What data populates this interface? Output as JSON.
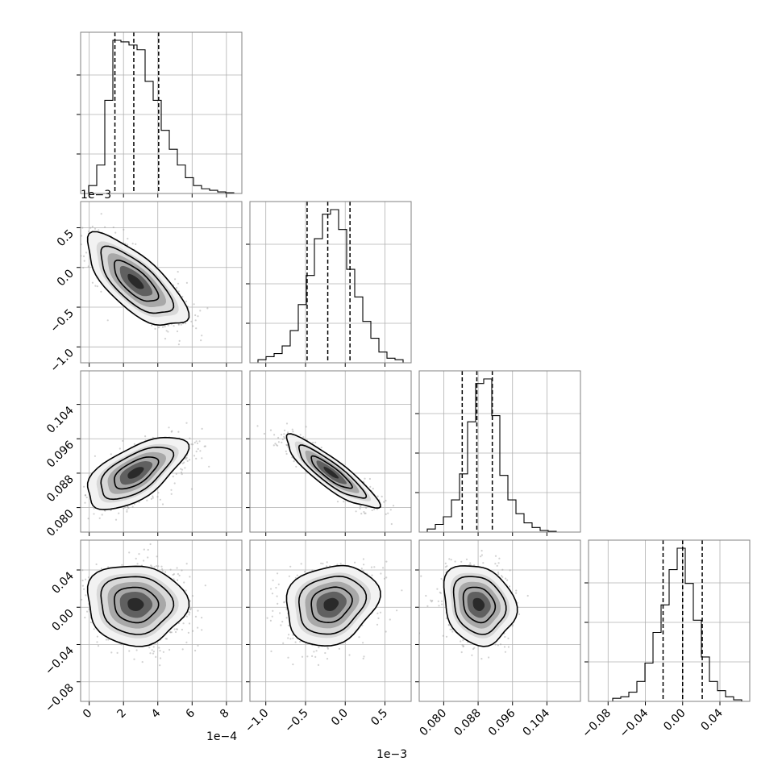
{
  "chart_data": {
    "type": "corner",
    "n_params": 4,
    "tick_labels": {
      "p0": [
        "0",
        "2",
        "4",
        "6",
        "8"
      ],
      "p1": [
        "−1.0",
        "−0.5",
        "0.0",
        "0.5"
      ],
      "p2": [
        "0.080",
        "0.088",
        "0.096",
        "0.104"
      ],
      "p3": [
        "−0.08",
        "−0.04",
        "0.00",
        "0.04"
      ]
    },
    "ticks": {
      "p0": [
        0,
        2,
        4,
        6,
        8
      ],
      "p1": [
        -1.0,
        -0.5,
        0.0,
        0.5
      ],
      "p2": [
        0.08,
        0.088,
        0.096,
        0.104
      ],
      "p3": [
        -0.08,
        -0.04,
        0.0,
        0.04
      ]
    },
    "offset_labels": {
      "p0_x": "1e−4",
      "p1_x": "1e−3",
      "p1_y": "1e−3"
    },
    "ranges": {
      "p0": [
        -0.5,
        8.9
      ],
      "p1": [
        -1.2,
        0.83
      ],
      "p2": [
        0.0743,
        0.1118
      ],
      "p3": [
        -0.101,
        0.072
      ]
    },
    "quantiles": {
      "p0": [
        1.5,
        2.6,
        4.05
      ],
      "p1": [
        -0.48,
        -0.22,
        0.06
      ],
      "p2": [
        0.0843,
        0.0877,
        0.0913
      ],
      "p3": [
        -0.021,
        0.0,
        0.021
      ]
    },
    "marginals": {
      "p0": {
        "edges_start": -0.5,
        "bin_width": 0.47,
        "counts": [
          0,
          0.05,
          0.18,
          0.59,
          0.97,
          0.96,
          0.94,
          0.91,
          0.71,
          0.59,
          0.4,
          0.28,
          0.18,
          0.1,
          0.05,
          0.03,
          0.02,
          0.01,
          0.005,
          0
        ]
      },
      "p1": {
        "edges_start": -1.2,
        "bin_width": 0.1015,
        "counts": [
          0,
          0.02,
          0.04,
          0.06,
          0.11,
          0.21,
          0.38,
          0.57,
          0.81,
          0.97,
          1.0,
          0.87,
          0.61,
          0.43,
          0.27,
          0.16,
          0.07,
          0.03,
          0.02,
          0
        ]
      },
      "p2": {
        "edges_start": 0.0743,
        "bin_width": 0.001875,
        "counts": [
          0,
          0.02,
          0.05,
          0.1,
          0.21,
          0.38,
          0.72,
          0.97,
          1.0,
          0.76,
          0.37,
          0.21,
          0.12,
          0.06,
          0.03,
          0.01,
          0.005,
          0,
          0,
          0
        ]
      },
      "p3": {
        "edges_start": -0.101,
        "bin_width": 0.00865,
        "counts": [
          0,
          0,
          0,
          0.02,
          0.03,
          0.06,
          0.13,
          0.25,
          0.45,
          0.63,
          0.86,
          1.0,
          0.77,
          0.53,
          0.29,
          0.13,
          0.07,
          0.03,
          0.01,
          0
        ]
      }
    },
    "pairs": [
      {
        "x": "p0",
        "y": "p1",
        "mean": [
          2.7,
          -0.18
        ],
        "sd": [
          1.35,
          0.27
        ],
        "rho": -0.72
      },
      {
        "x": "p0",
        "y": "p2",
        "mean": [
          2.7,
          0.0881
        ],
        "sd": [
          1.35,
          0.0039
        ],
        "rho": 0.62
      },
      {
        "x": "p1",
        "y": "p2",
        "mean": [
          -0.18,
          0.0881
        ],
        "sd": [
          0.27,
          0.0039
        ],
        "rho": -0.88
      },
      {
        "x": "p0",
        "y": "p3",
        "mean": [
          2.7,
          0.003
        ],
        "sd": [
          1.35,
          0.02
        ],
        "rho": -0.05
      },
      {
        "x": "p1",
        "y": "p3",
        "mean": [
          -0.18,
          0.003
        ],
        "sd": [
          0.27,
          0.02
        ],
        "rho": 0.18
      },
      {
        "x": "p2",
        "y": "p3",
        "mean": [
          0.0881,
          0.003
        ],
        "sd": [
          0.0039,
          0.02
        ],
        "rho": -0.18
      }
    ],
    "grid": true,
    "colors": {
      "contour": "#000000",
      "points": "#9a9a9a",
      "grid": "#b0b0b0",
      "frame": "#808080"
    }
  }
}
